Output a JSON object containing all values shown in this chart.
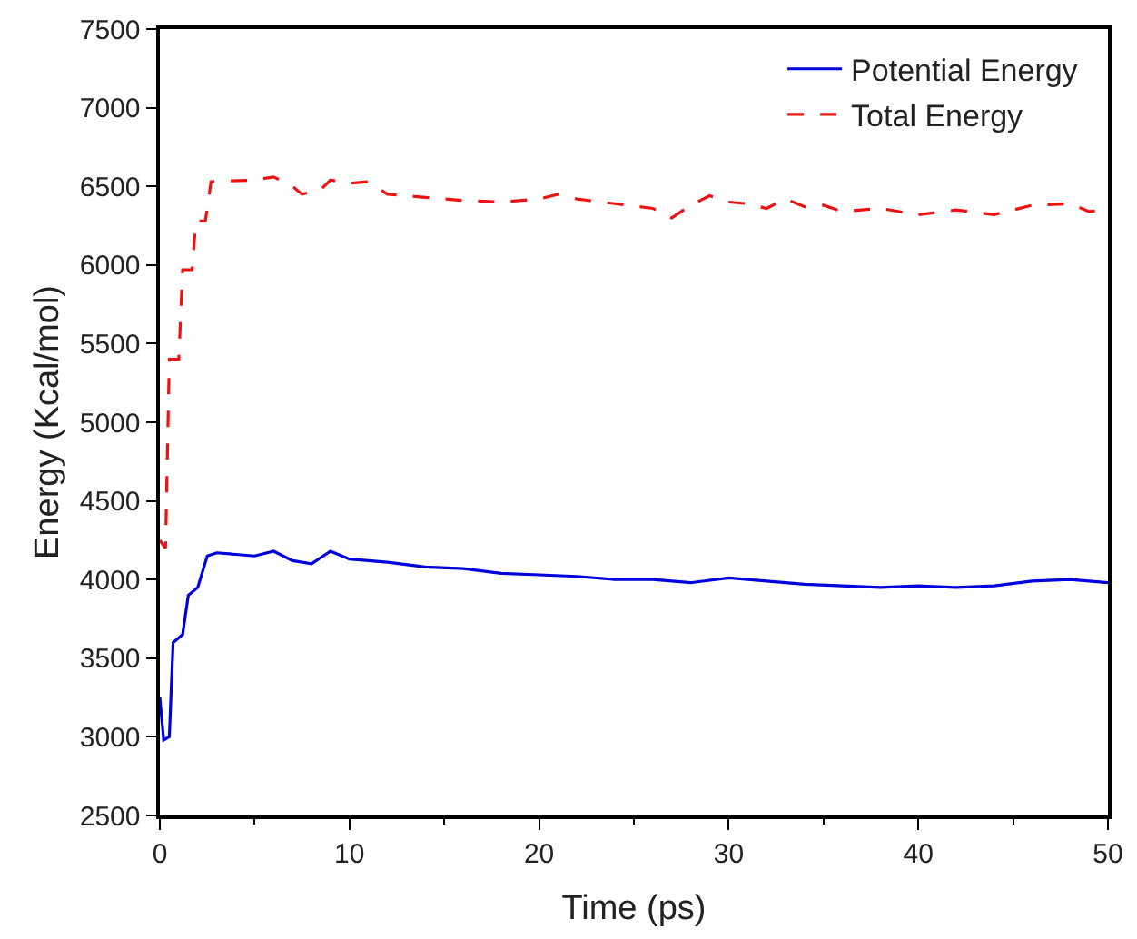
{
  "chart_data": {
    "type": "line",
    "xlabel": "Time (ps)",
    "ylabel": "Energy (Kcal/mol)",
    "xlim": [
      0,
      50
    ],
    "xticks": [
      0,
      10,
      20,
      30,
      40,
      50
    ],
    "ylim": [
      2500,
      7500
    ],
    "yticks": [
      2500,
      3000,
      3500,
      4000,
      4500,
      5000,
      5500,
      6000,
      6500,
      7000,
      7500
    ],
    "legend": "top right",
    "marker": "none",
    "series": [
      {
        "name": "Potential Energy",
        "color": "#0000dd",
        "line_style": "solid",
        "x": [
          0,
          0.2,
          0.5,
          0.7,
          1.2,
          1.5,
          2,
          2.5,
          3,
          4,
          5,
          6,
          7,
          8,
          9,
          10,
          12,
          14,
          16,
          18,
          20,
          22,
          24,
          26,
          28,
          30,
          32,
          34,
          36,
          38,
          40,
          42,
          44,
          46,
          48,
          50
        ],
        "values": [
          3250,
          2980,
          3000,
          3600,
          3650,
          3900,
          3950,
          4150,
          4170,
          4160,
          4150,
          4180,
          4120,
          4100,
          4180,
          4130,
          4110,
          4080,
          4070,
          4040,
          4030,
          4020,
          4000,
          4000,
          3980,
          4010,
          3990,
          3970,
          3960,
          3950,
          3960,
          3950,
          3960,
          3990,
          4000,
          3980
        ]
      },
      {
        "name": "Total Energy",
        "color": "#ee1111",
        "line_style": "dashed",
        "x": [
          0,
          0.3,
          0.5,
          1.0,
          1.2,
          1.7,
          1.9,
          2.4,
          2.7,
          5,
          6,
          7,
          7.5,
          8.5,
          9,
          10,
          11,
          12,
          14,
          16,
          18,
          20,
          21,
          22,
          24,
          26,
          27,
          28,
          29,
          30,
          31,
          32,
          33,
          34,
          35,
          36,
          37,
          38,
          40,
          42,
          44,
          46,
          48,
          49,
          50
        ],
        "values": [
          4250,
          4200,
          5400,
          5400,
          5970,
          5970,
          6280,
          6280,
          6530,
          6540,
          6560,
          6500,
          6450,
          6480,
          6540,
          6520,
          6530,
          6450,
          6430,
          6410,
          6400,
          6420,
          6450,
          6420,
          6390,
          6360,
          6300,
          6380,
          6440,
          6400,
          6390,
          6360,
          6420,
          6370,
          6380,
          6340,
          6350,
          6360,
          6320,
          6350,
          6320,
          6380,
          6390,
          6340,
          6350
        ]
      }
    ]
  }
}
